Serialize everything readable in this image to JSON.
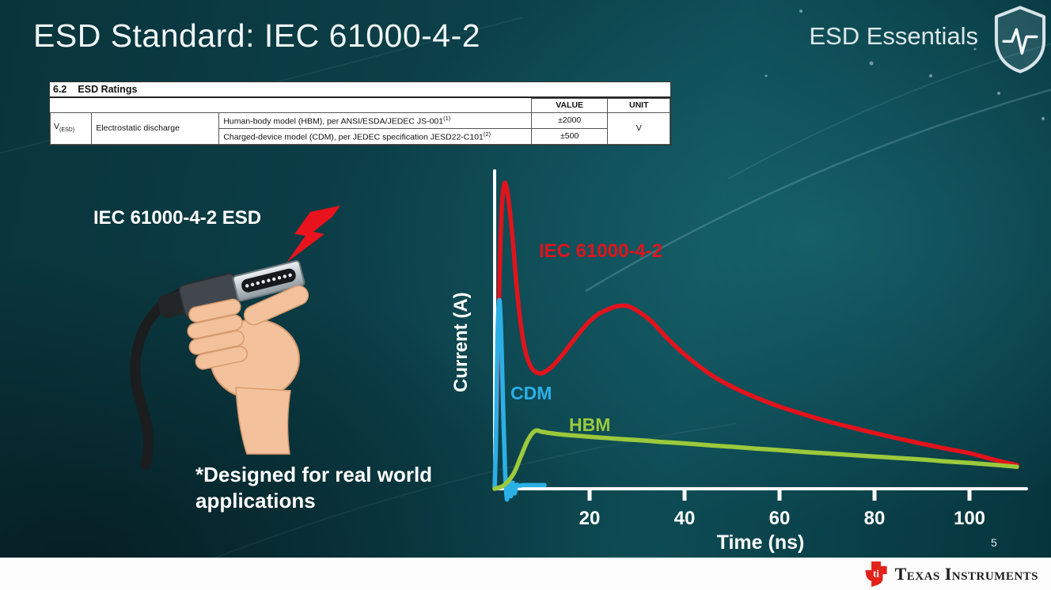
{
  "slide": {
    "title": "ESD Standard: IEC 61000-4-2",
    "program": "ESD Essentials",
    "page_number": "5",
    "footer_brand": "Texas Instruments"
  },
  "ratings_table": {
    "section_number": "6.2",
    "section_title": "ESD Ratings",
    "value_header": "VALUE",
    "unit_header": "UNIT",
    "param_symbol": "V",
    "param_subscript": "(ESD)",
    "param_name": "Electrostatic discharge",
    "rows": [
      {
        "description": "Human-body model (HBM), per ANSI/ESDA/JEDEC JS-001",
        "superscript": "(1)",
        "value": "±2000"
      },
      {
        "description": "Charged-device model (CDM), per JEDEC specification JESD22-C101",
        "superscript": "(2)",
        "value": "±500"
      }
    ],
    "unit_value": "V"
  },
  "left_panel": {
    "connector_label": "IEC 61000-4-2 ESD",
    "caption": "*Designed for real world\napplications"
  },
  "chart_data": {
    "type": "line",
    "title": "",
    "xlabel": "Time (ns)",
    "ylabel": "Current (A)",
    "xlim": [
      0,
      112
    ],
    "ylim": [
      -0.05,
      1.05
    ],
    "xticks": [
      20,
      40,
      60,
      80,
      100
    ],
    "grid": false,
    "legend_position": "inline-labels",
    "axis_color": "#ffffff",
    "y_units": "relative (no scale shown)",
    "series": [
      {
        "name": "IEC 61000-4-2",
        "color": "#e2131c",
        "x": [
          0,
          0.5,
          1,
          1.5,
          2,
          2.5,
          3,
          3.8,
          4.6,
          5.5,
          6.5,
          7.5,
          8.5,
          10,
          12,
          14,
          16,
          18,
          20,
          22,
          24,
          26,
          28,
          30,
          33,
          36,
          39,
          42,
          46,
          50,
          55,
          60,
          65,
          70,
          75,
          80,
          85,
          90,
          95,
          100,
          105,
          110
        ],
        "y": [
          0,
          0.3,
          0.68,
          0.92,
          1.0,
          0.99,
          0.94,
          0.82,
          0.67,
          0.54,
          0.45,
          0.405,
          0.385,
          0.38,
          0.4,
          0.435,
          0.475,
          0.515,
          0.55,
          0.575,
          0.59,
          0.6,
          0.6,
          0.585,
          0.55,
          0.5,
          0.455,
          0.415,
          0.37,
          0.335,
          0.3,
          0.27,
          0.245,
          0.222,
          0.202,
          0.183,
          0.165,
          0.148,
          0.132,
          0.117,
          0.096,
          0.078
        ]
      },
      {
        "name": "CDM",
        "color": "#2bb0e6",
        "x": [
          0,
          0.3,
          0.6,
          1.0,
          1.4,
          1.8,
          2.2,
          2.6,
          3.0,
          3.4,
          3.8,
          4.2,
          4.6,
          5.2,
          6.0,
          7.0,
          8.5,
          10.5
        ],
        "y": [
          0,
          0.18,
          0.5,
          0.62,
          0.5,
          0.26,
          0.06,
          -0.035,
          0.03,
          -0.025,
          0.02,
          -0.015,
          0.012,
          0.01,
          0.012,
          0.012,
          0.012,
          0.012
        ]
      },
      {
        "name": "HBM",
        "color": "#9cc93c",
        "x": [
          0,
          2,
          4,
          5.5,
          7,
          8.5,
          10,
          12,
          15,
          20,
          25,
          30,
          35,
          40,
          45,
          50,
          55,
          60,
          65,
          70,
          75,
          80,
          85,
          90,
          95,
          100,
          105,
          110
        ],
        "y": [
          0,
          0.012,
          0.05,
          0.105,
          0.16,
          0.19,
          0.187,
          0.182,
          0.177,
          0.171,
          0.165,
          0.16,
          0.154,
          0.149,
          0.143,
          0.138,
          0.132,
          0.127,
          0.121,
          0.116,
          0.111,
          0.106,
          0.101,
          0.096,
          0.09,
          0.085,
          0.079,
          0.072
        ]
      }
    ]
  }
}
